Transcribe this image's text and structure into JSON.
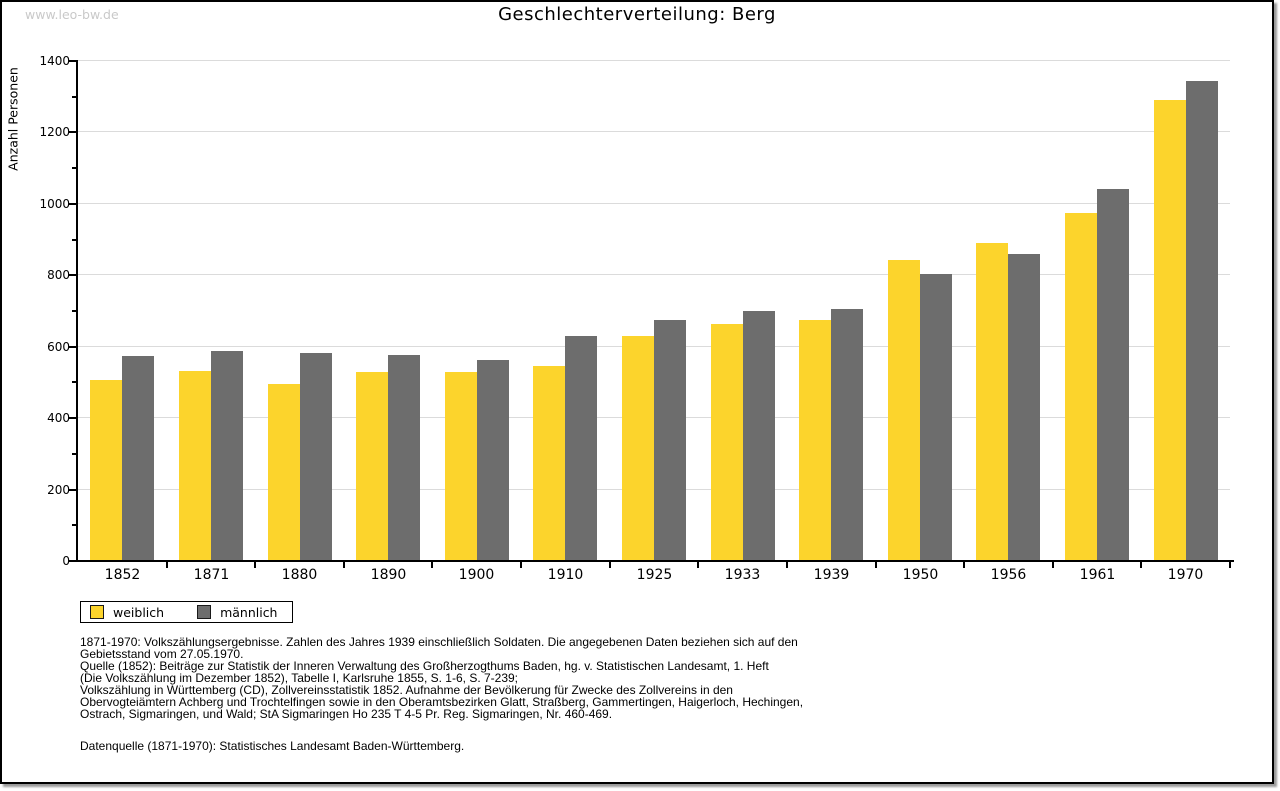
{
  "watermark": "www.leo-bw.de",
  "chart_data": {
    "type": "bar",
    "title": "Geschlechterverteilung: Berg",
    "ylabel": "Anzahl Personen",
    "xlabel": "",
    "categories": [
      "1852",
      "1871",
      "1880",
      "1890",
      "1900",
      "1910",
      "1925",
      "1933",
      "1939",
      "1950",
      "1956",
      "1961",
      "1970"
    ],
    "series": [
      {
        "name": "weiblich",
        "color": "#FCD42C",
        "values": [
          505,
          530,
          492,
          527,
          525,
          543,
          627,
          660,
          671,
          840,
          888,
          971,
          1288
        ]
      },
      {
        "name": "männlich",
        "color": "#6D6D6D",
        "values": [
          570,
          585,
          580,
          575,
          560,
          627,
          672,
          696,
          702,
          800,
          856,
          1038,
          1340
        ]
      }
    ],
    "ylim": [
      0,
      1400
    ],
    "ytick_step": 200,
    "yminor_step": 100,
    "grid": true,
    "legend_position": "bottom-left"
  },
  "legend": {
    "items": [
      {
        "label": "weiblich",
        "color": "#FCD42C"
      },
      {
        "label": "männlich",
        "color": "#6D6D6D"
      }
    ]
  },
  "footnotes": [
    "1871-1970: Volkszählungsergebnisse. Zahlen des Jahres 1939 einschließlich Soldaten. Die angegebenen Daten beziehen sich auf den",
    "Gebietsstand vom 27.05.1970.",
    "Quelle (1852): Beiträge zur Statistik der Inneren Verwaltung des Großherzogthums Baden, hg. v. Statistischen Landesamt, 1. Heft",
    "(Die Volkszählung im Dezember 1852), Tabelle I, Karlsruhe 1855, S. 1-6, S. 7-239;",
    "Volkszählung in Württemberg (CD), Zollvereinsstatistik 1852. Aufnahme der Bevölkerung für Zwecke des Zollvereins in den",
    "Obervogteiämtern Achberg und Trochtelfingen sowie in den Oberamtsbezirken Glatt, Straßberg, Gammertingen, Haigerloch, Hechingen,",
    "Ostrach, Sigmaringen, und Wald; StA Sigmaringen Ho 235 T 4-5 Pr. Reg. Sigmaringen, Nr. 460-469."
  ],
  "datasource": "Datenquelle (1871-1970): Statistisches Landesamt Baden-Württemberg.",
  "colors": {
    "female_bar": "#FCD42C",
    "male_bar": "#6D6D6D",
    "gridline": "#DBDBDB",
    "axis": "#000000",
    "watermark": "#C9C9C9"
  }
}
